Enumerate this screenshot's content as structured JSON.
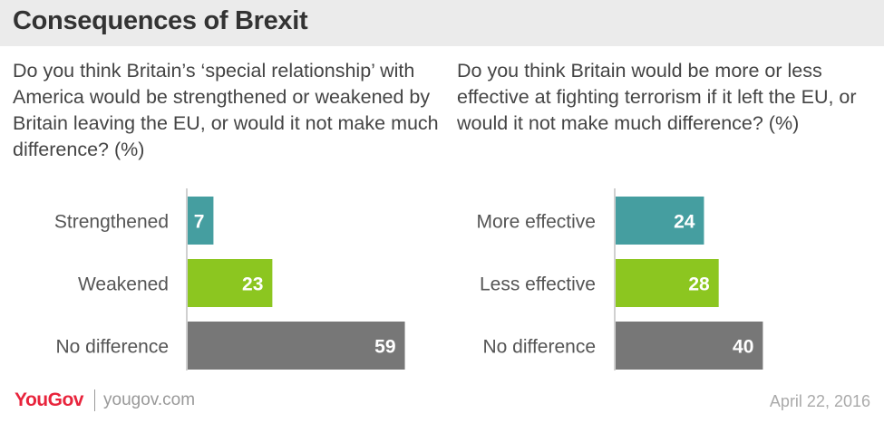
{
  "header": {
    "title": "Consequences of Brexit"
  },
  "colors": {
    "teal": "#459ea0",
    "green": "#8cc620",
    "gray": "#777777",
    "axis": "#d0d0d0"
  },
  "chart_data": [
    {
      "type": "bar",
      "orientation": "horizontal",
      "title": "Do you think Britain’s ‘special relationship’ with America would be strengthened or weakened by Britain leaving the EU, or would it not make much difference? (%)",
      "categories": [
        "Strengthened",
        "Weakened",
        "No difference"
      ],
      "values": [
        7,
        23,
        59
      ],
      "value_labels": [
        "7",
        "23",
        "59"
      ],
      "bar_colors": [
        "#459ea0",
        "#8cc620",
        "#777777"
      ],
      "xlabel": "",
      "ylabel": "",
      "grid": false,
      "legend": "none"
    },
    {
      "type": "bar",
      "orientation": "horizontal",
      "title": "Do you think Britain would be more or less effective at fighting terrorism if it left the EU, or would it not make much difference? (%)",
      "categories": [
        "More effective",
        "Less effective",
        "No difference"
      ],
      "values": [
        24,
        28,
        40
      ],
      "value_labels": [
        "24",
        "28",
        "40"
      ],
      "bar_colors": [
        "#459ea0",
        "#8cc620",
        "#777777"
      ],
      "xlabel": "",
      "ylabel": "",
      "grid": false,
      "legend": "none"
    }
  ],
  "footer": {
    "logo": "YouGov",
    "url": "yougov.com",
    "date": "April 22, 2016"
  }
}
